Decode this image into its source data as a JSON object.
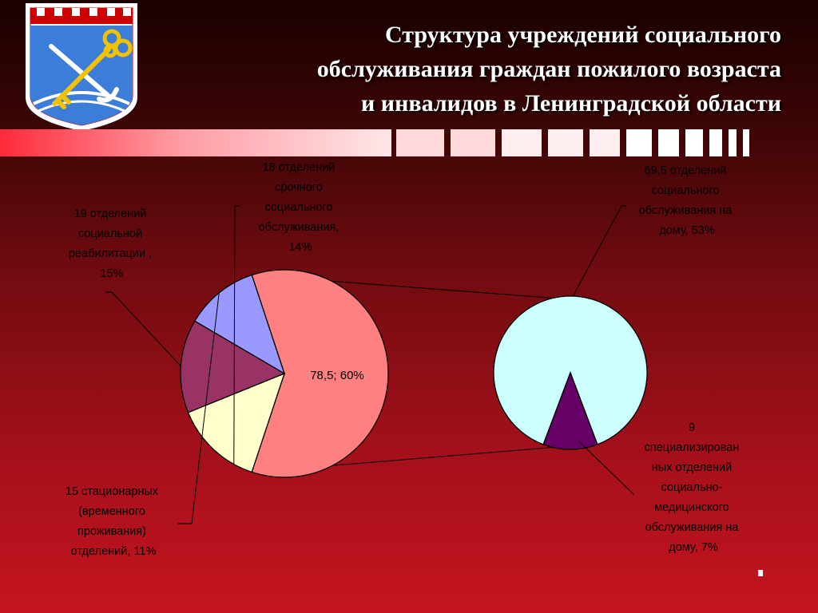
{
  "title": {
    "lines": [
      "Структура учреждений социального",
      "обслуживания граждан пожилого возраста",
      "и инвалидов в Ленинградской области"
    ]
  },
  "colors": {
    "rehab": "#993366",
    "urgent": "#ffffcc",
    "other": "#ff8080",
    "stationary": "#9999ff",
    "home_service": "#ccffff",
    "medical_home": "#660066"
  },
  "icons": {
    "emblem": "coat-of-arms-icon"
  },
  "chart_data": {
    "type": "bar-of-pie",
    "main_pie": {
      "slices": [
        {
          "key": "other",
          "value": 78.5,
          "percent": 60,
          "label": [
            "78,5; 60%"
          ]
        },
        {
          "key": "stationary",
          "value": 15,
          "percent": 11,
          "label": [
            "15 стационарных",
            "(временного",
            "проживания)",
            "отделений, 11%"
          ]
        },
        {
          "key": "rehab",
          "value": 19,
          "percent": 15,
          "label": [
            "19 отделений",
            "социальной",
            "реабилитации ,",
            "15%"
          ]
        },
        {
          "key": "urgent",
          "value": 18,
          "percent": 14,
          "label": [
            "18 отделений",
            "срочного",
            "социального",
            "обслуживания,",
            "14%"
          ]
        }
      ]
    },
    "secondary_pie": {
      "slices": [
        {
          "key": "home_service",
          "value": 69.5,
          "percent": 53,
          "label": [
            "69,5 отделений",
            "социального",
            "обслуживания на",
            "дому, 53%"
          ]
        },
        {
          "key": "medical_home",
          "value": 9,
          "percent": 7,
          "label": [
            "9",
            "специализирован",
            "ных отделений",
            "социально-",
            "медицинского",
            "обслуживания на",
            "дому, 7%"
          ]
        }
      ]
    }
  }
}
